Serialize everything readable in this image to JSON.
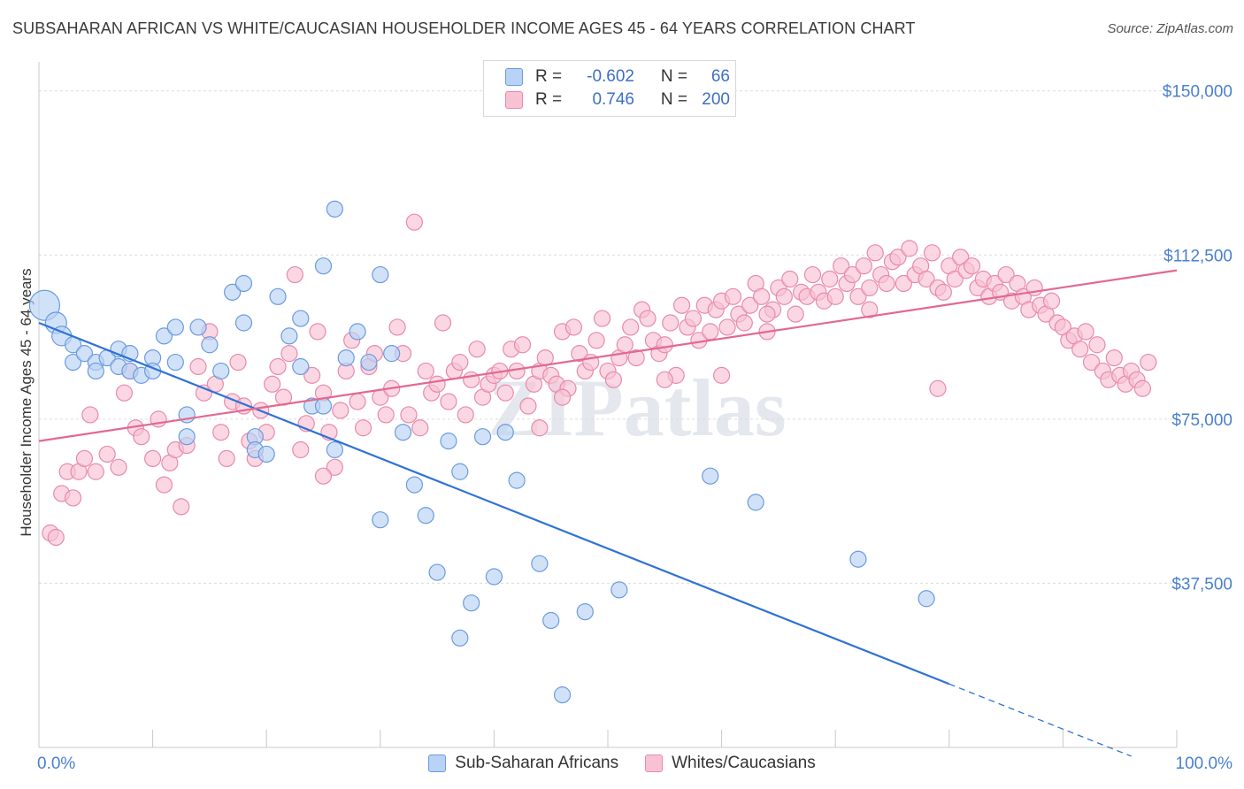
{
  "title": "SUBSAHARAN AFRICAN VS WHITE/CAUCASIAN HOUSEHOLDER INCOME AGES 45 - 64 YEARS CORRELATION CHART",
  "source": "Source: ZipAtlas.com",
  "watermark": "ZIPatlas",
  "colors": {
    "blue_fill": "#b8d3f5",
    "blue_stroke": "#6a9be0",
    "blue_line": "#2f72d6",
    "pink_fill": "#f8c2d4",
    "pink_stroke": "#e98aaa",
    "pink_line": "#e2698f",
    "tick_label": "#4a7fd0"
  },
  "legend": {
    "blue": {
      "r_label": "R =",
      "r_value": "-0.602",
      "n_label": "N =",
      "n_value": "66"
    },
    "pink": {
      "r_label": "R =",
      "r_value": "0.746",
      "n_label": "N =",
      "n_value": "200"
    }
  },
  "bottom_legend": [
    "Sub-Saharan Africans",
    "Whites/Caucasians"
  ],
  "chart_data": {
    "type": "scatter",
    "xlabel": "",
    "ylabel": "Householder Income Ages 45 - 64 years",
    "xlim": [
      0,
      100
    ],
    "ylim": [
      0,
      155000
    ],
    "x_tick_labels": [
      "0.0%",
      "100.0%"
    ],
    "y_tick_labels": [
      "$37,500",
      "$75,000",
      "$112,500",
      "$150,000"
    ],
    "y_tick_values": [
      37500,
      75000,
      112500,
      150000
    ],
    "grid": true,
    "series": [
      {
        "name": "Sub-Saharan Africans",
        "trend": {
          "x0": 0,
          "y0": 97000,
          "x1": 80,
          "y1": 14500,
          "dash_to_x": 96
        },
        "points": [
          [
            0.5,
            101000
          ],
          [
            1.5,
            97000
          ],
          [
            2,
            94000
          ],
          [
            3,
            92000
          ],
          [
            3,
            88000
          ],
          [
            4,
            90000
          ],
          [
            5,
            88000
          ],
          [
            6,
            89000
          ],
          [
            5,
            86000
          ],
          [
            7,
            87000
          ],
          [
            7,
            91000
          ],
          [
            8,
            90000
          ],
          [
            8,
            86000
          ],
          [
            9,
            85000
          ],
          [
            10,
            89000
          ],
          [
            10,
            86000
          ],
          [
            11,
            94000
          ],
          [
            12,
            96000
          ],
          [
            12,
            88000
          ],
          [
            13,
            76000
          ],
          [
            13,
            71000
          ],
          [
            14,
            96000
          ],
          [
            15,
            92000
          ],
          [
            16,
            86000
          ],
          [
            17,
            104000
          ],
          [
            18,
            106000
          ],
          [
            18,
            97000
          ],
          [
            19,
            71000
          ],
          [
            19,
            68000
          ],
          [
            20,
            67000
          ],
          [
            21,
            103000
          ],
          [
            22,
            94000
          ],
          [
            23,
            98000
          ],
          [
            23,
            87000
          ],
          [
            24,
            78000
          ],
          [
            25,
            110000
          ],
          [
            25,
            78000
          ],
          [
            26,
            123000
          ],
          [
            26,
            68000
          ],
          [
            27,
            89000
          ],
          [
            28,
            95000
          ],
          [
            29,
            88000
          ],
          [
            30,
            108000
          ],
          [
            30,
            52000
          ],
          [
            31,
            90000
          ],
          [
            32,
            72000
          ],
          [
            33,
            60000
          ],
          [
            34,
            53000
          ],
          [
            35,
            40000
          ],
          [
            36,
            70000
          ],
          [
            37,
            63000
          ],
          [
            37,
            25000
          ],
          [
            38,
            33000
          ],
          [
            39,
            71000
          ],
          [
            40,
            39000
          ],
          [
            41,
            72000
          ],
          [
            42,
            61000
          ],
          [
            44,
            42000
          ],
          [
            45,
            29000
          ],
          [
            46,
            12000
          ],
          [
            48,
            31000
          ],
          [
            51,
            36000
          ],
          [
            59,
            62000
          ],
          [
            63,
            56000
          ],
          [
            72,
            43000
          ],
          [
            78,
            34000
          ]
        ]
      },
      {
        "name": "Whites/Caucasians",
        "trend": {
          "x0": 0,
          "y0": 70000,
          "x1": 100,
          "y1": 109000
        },
        "points": [
          [
            1,
            49000
          ],
          [
            1.5,
            48000
          ],
          [
            2,
            58000
          ],
          [
            2.5,
            63000
          ],
          [
            3,
            57000
          ],
          [
            3.5,
            63000
          ],
          [
            4,
            66000
          ],
          [
            4.5,
            76000
          ],
          [
            5,
            63000
          ],
          [
            6,
            67000
          ],
          [
            7,
            64000
          ],
          [
            7.5,
            81000
          ],
          [
            8,
            86000
          ],
          [
            8.5,
            73000
          ],
          [
            9,
            71000
          ],
          [
            10,
            66000
          ],
          [
            10.5,
            75000
          ],
          [
            11,
            60000
          ],
          [
            11.5,
            65000
          ],
          [
            12,
            68000
          ],
          [
            12.5,
            55000
          ],
          [
            13,
            69000
          ],
          [
            14,
            87000
          ],
          [
            14.5,
            81000
          ],
          [
            15,
            95000
          ],
          [
            15.5,
            83000
          ],
          [
            16,
            72000
          ],
          [
            16.5,
            66000
          ],
          [
            17,
            79000
          ],
          [
            17.5,
            88000
          ],
          [
            18,
            78000
          ],
          [
            18.5,
            70000
          ],
          [
            19,
            66000
          ],
          [
            19.5,
            77000
          ],
          [
            20,
            72000
          ],
          [
            20.5,
            83000
          ],
          [
            21,
            87000
          ],
          [
            21.5,
            80000
          ],
          [
            22,
            90000
          ],
          [
            22.5,
            108000
          ],
          [
            23,
            68000
          ],
          [
            23.5,
            74000
          ],
          [
            24,
            85000
          ],
          [
            24.5,
            95000
          ],
          [
            25,
            81000
          ],
          [
            25.5,
            72000
          ],
          [
            26,
            64000
          ],
          [
            26.5,
            77000
          ],
          [
            27,
            86000
          ],
          [
            27.5,
            93000
          ],
          [
            28,
            79000
          ],
          [
            28.5,
            73000
          ],
          [
            29,
            87000
          ],
          [
            29.5,
            90000
          ],
          [
            30,
            80000
          ],
          [
            30.5,
            76000
          ],
          [
            31,
            82000
          ],
          [
            31.5,
            96000
          ],
          [
            32,
            90000
          ],
          [
            32.5,
            76000
          ],
          [
            33,
            120000
          ],
          [
            33.5,
            73000
          ],
          [
            34,
            86000
          ],
          [
            34.5,
            81000
          ],
          [
            35,
            83000
          ],
          [
            35.5,
            97000
          ],
          [
            36,
            79000
          ],
          [
            36.5,
            86000
          ],
          [
            37,
            88000
          ],
          [
            37.5,
            76000
          ],
          [
            38,
            84000
          ],
          [
            38.5,
            91000
          ],
          [
            39,
            80000
          ],
          [
            39.5,
            83000
          ],
          [
            40,
            85000
          ],
          [
            40.5,
            86000
          ],
          [
            41,
            81000
          ],
          [
            41.5,
            91000
          ],
          [
            42,
            86000
          ],
          [
            42.5,
            92000
          ],
          [
            43,
            78000
          ],
          [
            43.5,
            83000
          ],
          [
            44,
            86000
          ],
          [
            44.5,
            89000
          ],
          [
            45,
            85000
          ],
          [
            45.5,
            83000
          ],
          [
            46,
            95000
          ],
          [
            46.5,
            82000
          ],
          [
            47,
            96000
          ],
          [
            47.5,
            90000
          ],
          [
            48,
            86000
          ],
          [
            48.5,
            88000
          ],
          [
            49,
            93000
          ],
          [
            49.5,
            98000
          ],
          [
            50,
            86000
          ],
          [
            50.5,
            84000
          ],
          [
            51,
            89000
          ],
          [
            51.5,
            92000
          ],
          [
            52,
            96000
          ],
          [
            52.5,
            89000
          ],
          [
            53,
            100000
          ],
          [
            53.5,
            98000
          ],
          [
            54,
            93000
          ],
          [
            54.5,
            90000
          ],
          [
            55,
            92000
          ],
          [
            55.5,
            97000
          ],
          [
            56,
            85000
          ],
          [
            56.5,
            101000
          ],
          [
            57,
            96000
          ],
          [
            57.5,
            98000
          ],
          [
            58,
            93000
          ],
          [
            58.5,
            101000
          ],
          [
            59,
            95000
          ],
          [
            59.5,
            100000
          ],
          [
            60,
            102000
          ],
          [
            60.5,
            96000
          ],
          [
            61,
            103000
          ],
          [
            61.5,
            99000
          ],
          [
            62,
            97000
          ],
          [
            62.5,
            101000
          ],
          [
            63,
            106000
          ],
          [
            63.5,
            103000
          ],
          [
            64,
            95000
          ],
          [
            64.5,
            100000
          ],
          [
            65,
            105000
          ],
          [
            65.5,
            103000
          ],
          [
            66,
            107000
          ],
          [
            66.5,
            99000
          ],
          [
            67,
            104000
          ],
          [
            67.5,
            103000
          ],
          [
            68,
            108000
          ],
          [
            68.5,
            104000
          ],
          [
            69,
            102000
          ],
          [
            69.5,
            107000
          ],
          [
            70,
            103000
          ],
          [
            70.5,
            110000
          ],
          [
            71,
            106000
          ],
          [
            71.5,
            108000
          ],
          [
            72,
            103000
          ],
          [
            72.5,
            110000
          ],
          [
            73,
            105000
          ],
          [
            73.5,
            113000
          ],
          [
            74,
            108000
          ],
          [
            74.5,
            106000
          ],
          [
            75,
            111000
          ],
          [
            75.5,
            112000
          ],
          [
            76,
            106000
          ],
          [
            76.5,
            114000
          ],
          [
            77,
            108000
          ],
          [
            77.5,
            110000
          ],
          [
            78,
            107000
          ],
          [
            78.5,
            113000
          ],
          [
            79,
            105000
          ],
          [
            79.5,
            104000
          ],
          [
            80,
            110000
          ],
          [
            80.5,
            107000
          ],
          [
            81,
            112000
          ],
          [
            81.5,
            109000
          ],
          [
            82,
            110000
          ],
          [
            82.5,
            105000
          ],
          [
            83,
            107000
          ],
          [
            83.5,
            103000
          ],
          [
            84,
            106000
          ],
          [
            84.5,
            104000
          ],
          [
            85,
            108000
          ],
          [
            85.5,
            102000
          ],
          [
            86,
            106000
          ],
          [
            86.5,
            103000
          ],
          [
            87,
            100000
          ],
          [
            87.5,
            105000
          ],
          [
            88,
            101000
          ],
          [
            88.5,
            99000
          ],
          [
            89,
            102000
          ],
          [
            89.5,
            97000
          ],
          [
            90,
            96000
          ],
          [
            90.5,
            93000
          ],
          [
            91,
            94000
          ],
          [
            91.5,
            91000
          ],
          [
            92,
            95000
          ],
          [
            92.5,
            88000
          ],
          [
            93,
            92000
          ],
          [
            93.5,
            86000
          ],
          [
            94,
            84000
          ],
          [
            94.5,
            89000
          ],
          [
            95,
            85000
          ],
          [
            95.5,
            83000
          ],
          [
            96,
            86000
          ],
          [
            96.5,
            84000
          ],
          [
            97,
            82000
          ],
          [
            97.5,
            88000
          ],
          [
            79,
            82000
          ],
          [
            60,
            85000
          ],
          [
            44,
            73000
          ],
          [
            25,
            62000
          ],
          [
            46,
            80000
          ],
          [
            55,
            84000
          ],
          [
            64,
            99000
          ],
          [
            73,
            100000
          ]
        ]
      }
    ]
  }
}
